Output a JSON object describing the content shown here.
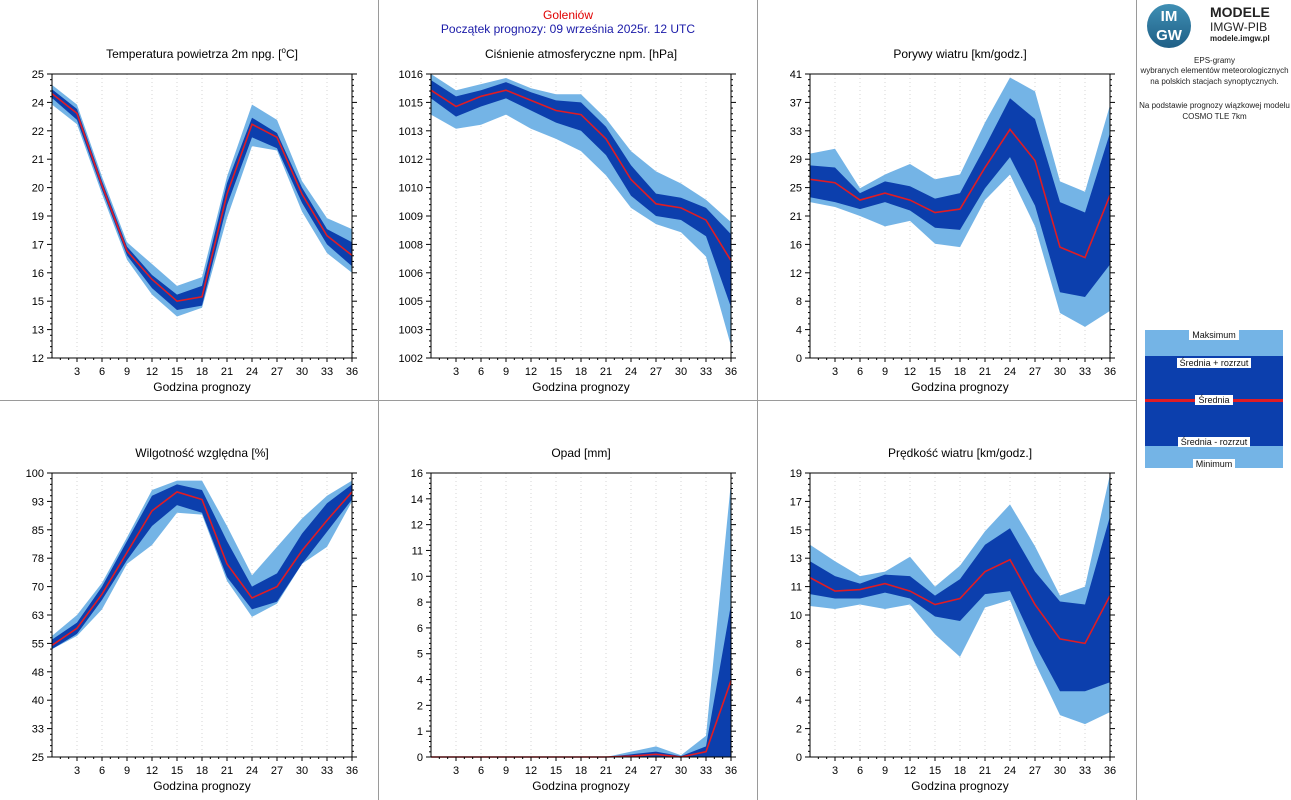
{
  "header": {
    "station": "Goleniów",
    "forecast_start": "Początek prognozy: 09 września 2025r. 12 UTC"
  },
  "logo": {
    "mark_line1": "IM",
    "mark_line2": "GW",
    "title": "MODELE",
    "subtitle": "IMGW-PIB",
    "url": "modele.imgw.pl"
  },
  "description": {
    "line1": "EPS-gramy",
    "line2": "wybranych elementów meteorologicznych",
    "line3": "na polskich stacjach  synoptycznych.",
    "line4": "Na podstawie prognozy wiązkowej modelu",
    "line5": "COSMO TLE 7km"
  },
  "legend": {
    "max": "Maksimum",
    "mean_plus": "Średnia + rozrzut",
    "mean": "Średnia",
    "mean_minus": "Średnia - rozrzut",
    "min": "Minimum"
  },
  "colors": {
    "minmax_band": "#74b4e6",
    "spread_band": "#0c3fad",
    "mean_line": "#e01c24",
    "station": "#e00000",
    "forecast_start": "#1a1aa8"
  },
  "chart_data": [
    {
      "type": "area",
      "title": "Temperatura powietrza 2m npg. [oC]",
      "title_prefix": "Temperatura powietrza 2m npg. [",
      "title_sup": "o",
      "title_suffix": "C]",
      "xlabel": "Godzina prognozy",
      "ylim": [
        12,
        25
      ],
      "yticks": [
        "12",
        "13",
        "15",
        "16",
        "17",
        "19",
        "20",
        "21",
        "22",
        "24",
        "25"
      ],
      "xticks": [
        "3",
        "6",
        "9",
        "12",
        "15",
        "18",
        "21",
        "24",
        "27",
        "30",
        "33",
        "36"
      ],
      "x": [
        0,
        3,
        6,
        9,
        12,
        15,
        18,
        21,
        24,
        27,
        30,
        33,
        36
      ],
      "series": [
        {
          "name": "Maksimum",
          "values": [
            24.5,
            23.6,
            20.3,
            17.3,
            16.3,
            15.3,
            15.7,
            20.3,
            23.6,
            22.9,
            20.1,
            18.4,
            17.9
          ]
        },
        {
          "name": "Średnia + rozrzut",
          "values": [
            24.3,
            23.4,
            20.1,
            17.1,
            15.8,
            14.9,
            15.3,
            20.0,
            23.0,
            22.3,
            19.8,
            17.9,
            17.3
          ]
        },
        {
          "name": "Średnia",
          "values": [
            24.1,
            23.2,
            19.9,
            16.9,
            15.6,
            14.6,
            14.8,
            19.5,
            22.7,
            22.1,
            19.5,
            17.6,
            16.7
          ]
        },
        {
          "name": "Średnia - rozrzut",
          "values": [
            23.9,
            22.9,
            19.7,
            16.7,
            15.2,
            14.2,
            14.4,
            19.0,
            22.1,
            21.6,
            19.1,
            17.2,
            16.2
          ]
        },
        {
          "name": "Minimum",
          "values": [
            23.6,
            22.7,
            19.5,
            16.5,
            14.9,
            13.9,
            14.3,
            18.4,
            21.7,
            21.5,
            18.7,
            16.8,
            15.9
          ]
        }
      ]
    },
    {
      "type": "area",
      "title": "Ciśnienie atmosferyczne npm. [hPa]",
      "xlabel": "Godzina prognozy",
      "ylim": [
        1002,
        1016
      ],
      "yticks": [
        "1002",
        "1003",
        "1005",
        "1006",
        "1008",
        "1009",
        "1010",
        "1012",
        "1013",
        "1015",
        "1016"
      ],
      "xticks": [
        "3",
        "6",
        "9",
        "12",
        "15",
        "18",
        "21",
        "24",
        "27",
        "30",
        "33",
        "36"
      ],
      "x": [
        0,
        3,
        6,
        9,
        12,
        15,
        18,
        21,
        24,
        27,
        30,
        33,
        36
      ],
      "series": [
        {
          "name": "Maksimum",
          "values": [
            1016.0,
            1015.2,
            1015.5,
            1015.8,
            1015.3,
            1015.0,
            1015.0,
            1013.8,
            1012.2,
            1011.2,
            1010.6,
            1009.8,
            1008.7
          ]
        },
        {
          "name": "Średnia + rozrzut",
          "values": [
            1015.7,
            1014.9,
            1015.2,
            1015.6,
            1015.1,
            1014.7,
            1014.6,
            1013.4,
            1011.5,
            1010.1,
            1009.9,
            1009.4,
            1008.1
          ]
        },
        {
          "name": "Średnia",
          "values": [
            1015.2,
            1014.4,
            1014.9,
            1015.2,
            1014.7,
            1014.2,
            1014.0,
            1012.8,
            1010.8,
            1009.6,
            1009.4,
            1008.8,
            1006.8
          ]
        },
        {
          "name": "Średnia - rozrzut",
          "values": [
            1014.8,
            1013.9,
            1014.4,
            1014.8,
            1014.2,
            1013.6,
            1013.2,
            1012.0,
            1010.0,
            1009.0,
            1008.8,
            1008.0,
            1004.5
          ]
        },
        {
          "name": "Minimum",
          "values": [
            1014.0,
            1013.3,
            1013.5,
            1014.0,
            1013.3,
            1012.8,
            1012.2,
            1011.0,
            1009.4,
            1008.6,
            1008.2,
            1007.0,
            1002.6
          ]
        }
      ]
    },
    {
      "type": "area",
      "title": "Porywy wiatru [km/godz.]",
      "xlabel": "Godzina prognozy",
      "ylim": [
        0,
        41
      ],
      "yticks": [
        "0",
        "4",
        "8",
        "12",
        "16",
        "21",
        "25",
        "29",
        "33",
        "37",
        "41"
      ],
      "xticks": [
        "3",
        "6",
        "9",
        "12",
        "15",
        "18",
        "21",
        "24",
        "27",
        "30",
        "33",
        "36"
      ],
      "x": [
        0,
        3,
        6,
        9,
        12,
        15,
        18,
        21,
        24,
        27,
        30,
        33,
        36
      ],
      "series": [
        {
          "name": "Maksimum",
          "values": [
            29.5,
            30.2,
            24.5,
            26.5,
            28.0,
            25.8,
            26.5,
            34.0,
            40.5,
            38.5,
            25.5,
            24.0,
            36.5
          ]
        },
        {
          "name": "Średnia + rozrzut",
          "values": [
            27.8,
            27.5,
            23.8,
            25.5,
            24.8,
            23.0,
            23.8,
            30.5,
            37.5,
            34.5,
            22.5,
            21.0,
            32.5
          ]
        },
        {
          "name": "Średnia",
          "values": [
            25.8,
            25.3,
            22.8,
            23.8,
            22.8,
            21.0,
            21.5,
            27.5,
            33.0,
            28.5,
            16.0,
            14.5,
            23.5
          ]
        },
        {
          "name": "Średnia - rozrzut",
          "values": [
            23.2,
            22.5,
            21.5,
            22.5,
            21.3,
            18.8,
            18.5,
            24.5,
            29.0,
            22.0,
            9.5,
            8.8,
            13.5
          ]
        },
        {
          "name": "Minimum",
          "values": [
            22.5,
            21.8,
            20.5,
            19.0,
            19.8,
            16.5,
            16.0,
            22.8,
            26.5,
            19.0,
            6.5,
            4.5,
            6.8
          ]
        }
      ]
    },
    {
      "type": "area",
      "title": "Wilgotność względna [%]",
      "xlabel": "Godzina prognozy",
      "ylim": [
        25,
        100
      ],
      "yticks": [
        "25",
        "33",
        "40",
        "48",
        "55",
        "63",
        "70",
        "78",
        "85",
        "93",
        "100"
      ],
      "xticks": [
        "3",
        "6",
        "9",
        "12",
        "15",
        "18",
        "21",
        "24",
        "27",
        "30",
        "33",
        "36"
      ],
      "x": [
        0,
        3,
        6,
        9,
        12,
        15,
        18,
        21,
        24,
        27,
        30,
        33,
        36
      ],
      "series": [
        {
          "name": "Maksimum",
          "values": [
            57.0,
            62.5,
            71.0,
            83.0,
            95.5,
            98.0,
            98.0,
            86.0,
            73.0,
            80.5,
            88.0,
            94.0,
            98.0
          ]
        },
        {
          "name": "Średnia + rozrzut",
          "values": [
            56.0,
            60.5,
            70.0,
            82.0,
            94.0,
            97.0,
            95.5,
            82.0,
            70.0,
            73.5,
            84.0,
            92.0,
            97.0
          ]
        },
        {
          "name": "Średnia",
          "values": [
            54.5,
            59.0,
            68.0,
            79.0,
            90.0,
            95.0,
            93.0,
            76.0,
            67.0,
            70.0,
            79.5,
            87.5,
            95.0
          ]
        },
        {
          "name": "Średnia - rozrzut",
          "values": [
            53.5,
            57.5,
            66.5,
            77.0,
            86.0,
            91.5,
            89.5,
            72.5,
            64.0,
            66.0,
            76.0,
            84.5,
            93.0
          ]
        },
        {
          "name": "Minimum",
          "values": [
            53.5,
            57.0,
            64.0,
            76.0,
            81.0,
            89.5,
            89.0,
            71.5,
            62.0,
            65.5,
            76.0,
            80.5,
            92.5
          ]
        }
      ]
    },
    {
      "type": "area",
      "title": "Opad [mm]",
      "xlabel": "Godzina prognozy",
      "ylim": [
        0,
        16
      ],
      "yticks": [
        "0",
        "1",
        "2",
        "4",
        "5",
        "6",
        "8",
        "10",
        "11",
        "12",
        "14",
        "16"
      ],
      "xticks": [
        "3",
        "6",
        "9",
        "12",
        "15",
        "18",
        "21",
        "24",
        "27",
        "30",
        "33",
        "36"
      ],
      "x": [
        0,
        3,
        6,
        9,
        12,
        15,
        18,
        21,
        24,
        27,
        30,
        33,
        36
      ],
      "series": [
        {
          "name": "Maksimum",
          "values": [
            0,
            0,
            0,
            0,
            0,
            0,
            0,
            0,
            0.3,
            0.6,
            0.1,
            1.2,
            15.5
          ]
        },
        {
          "name": "Średnia + rozrzut",
          "values": [
            0,
            0,
            0,
            0,
            0,
            0,
            0,
            0,
            0.15,
            0.3,
            0.05,
            0.6,
            8.6
          ]
        },
        {
          "name": "Średnia",
          "values": [
            0,
            0,
            0,
            0,
            0,
            0,
            0,
            0,
            0.05,
            0.15,
            0,
            0.3,
            4.3
          ]
        },
        {
          "name": "Średnia - rozrzut",
          "values": [
            0,
            0,
            0,
            0,
            0,
            0,
            0,
            0,
            0,
            0,
            0,
            0,
            0
          ]
        },
        {
          "name": "Minimum",
          "values": [
            0,
            0,
            0,
            0,
            0,
            0,
            0,
            0,
            0,
            0,
            0,
            0,
            0
          ]
        }
      ]
    },
    {
      "type": "area",
      "title": "Prędkość wiatru [km/godz.]",
      "xlabel": "Godzina prognozy",
      "ylim": [
        0,
        19
      ],
      "yticks": [
        "0",
        "2",
        "4",
        "6",
        "8",
        "10",
        "11",
        "13",
        "15",
        "17",
        "19"
      ],
      "xticks": [
        "3",
        "6",
        "9",
        "12",
        "15",
        "18",
        "21",
        "24",
        "27",
        "30",
        "33",
        "36"
      ],
      "x": [
        0,
        3,
        6,
        9,
        12,
        15,
        18,
        21,
        24,
        27,
        30,
        33,
        36
      ],
      "series": [
        {
          "name": "Maksimum",
          "values": [
            14.2,
            13.1,
            12.1,
            12.4,
            13.4,
            11.4,
            12.8,
            15.1,
            16.9,
            14.1,
            10.8,
            11.4,
            18.9
          ]
        },
        {
          "name": "Średnia + rozrzut",
          "values": [
            13.1,
            12.1,
            11.6,
            12.2,
            12.1,
            10.8,
            11.9,
            14.2,
            15.3,
            12.4,
            10.4,
            10.2,
            16.1
          ]
        },
        {
          "name": "Średnia",
          "values": [
            12.0,
            11.1,
            11.2,
            11.6,
            11.1,
            10.2,
            10.6,
            12.4,
            13.2,
            10.2,
            7.9,
            7.6,
            10.8
          ]
        },
        {
          "name": "Średnia - rozrzut",
          "values": [
            10.9,
            10.6,
            10.6,
            11.0,
            10.6,
            9.4,
            9.1,
            10.9,
            11.1,
            7.5,
            4.4,
            4.4,
            5.0
          ]
        },
        {
          "name": "Minimum",
          "values": [
            10.1,
            9.9,
            10.2,
            9.9,
            10.2,
            8.2,
            6.7,
            10.0,
            10.5,
            6.3,
            2.8,
            2.2,
            3.0
          ]
        }
      ]
    }
  ]
}
